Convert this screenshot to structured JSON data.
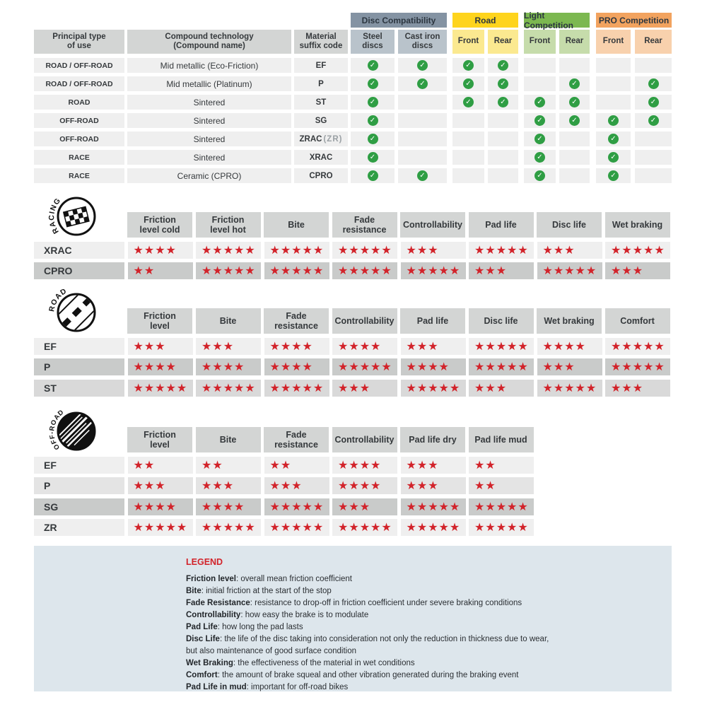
{
  "colors": {
    "star_red": "#d2232a",
    "check_green": "#2f9e44",
    "header_gray": "#d3d5d4",
    "row_light": "#efefef",
    "row_shades": {
      "light": "#efefef",
      "mediumlight": "#e4e4e4",
      "medium": "#d9d9d9",
      "dark": "#c9cbca"
    },
    "legend_bg": "#dde6ec",
    "accent_red": "#d2232a",
    "text_dark": "#35393c"
  },
  "chart_data": [
    {
      "id": "compatibility",
      "type": "table",
      "headers": {
        "principal": "Principal type\nof use",
        "compound": "Compound technology\n(Compound name)",
        "material": "Material\nsuffix code"
      },
      "column_groups": [
        {
          "label": "Disc Compatibility",
          "color": "#8493a3",
          "sub_color": "#b9c3cb",
          "sub_columns": [
            "Steel\ndiscs",
            "Cast iron\ndiscs"
          ]
        },
        {
          "label": "Road",
          "color": "#fed41d",
          "sub_color": "#fbe990",
          "sub_columns": [
            "Front",
            "Rear"
          ]
        },
        {
          "label": "Light Competition",
          "color": "#7cb850",
          "sub_color": "#c6dcab",
          "sub_columns": [
            "Front",
            "Rear"
          ]
        },
        {
          "label": "PRO Competition",
          "color": "#f2a35f",
          "sub_color": "#f8d1ad",
          "sub_columns": [
            "Front",
            "Rear"
          ]
        }
      ],
      "rows": [
        {
          "use": "ROAD / OFF-ROAD",
          "compound": "Mid metallic (Eco-Friction)",
          "code": "EF",
          "code_note": "",
          "checks": [
            1,
            1,
            1,
            1,
            0,
            0,
            0,
            0
          ]
        },
        {
          "use": "ROAD / OFF-ROAD",
          "compound": "Mid metallic (Platinum)",
          "code": "P",
          "code_note": "",
          "checks": [
            1,
            1,
            1,
            1,
            0,
            1,
            0,
            1
          ]
        },
        {
          "use": "ROAD",
          "compound": "Sintered",
          "code": "ST",
          "code_note": "",
          "checks": [
            1,
            0,
            1,
            1,
            1,
            1,
            0,
            1
          ]
        },
        {
          "use": "OFF-ROAD",
          "compound": "Sintered",
          "code": "SG",
          "code_note": "",
          "checks": [
            1,
            0,
            0,
            0,
            1,
            1,
            1,
            1
          ]
        },
        {
          "use": "OFF-ROAD",
          "compound": "Sintered",
          "code": "ZRAC",
          "code_note": "(ZR)",
          "checks": [
            1,
            0,
            0,
            0,
            1,
            0,
            1,
            0
          ]
        },
        {
          "use": "RACE",
          "compound": "Sintered",
          "code": "XRAC",
          "code_note": "",
          "checks": [
            1,
            0,
            0,
            0,
            1,
            0,
            1,
            0
          ]
        },
        {
          "use": "RACE",
          "compound": "Ceramic (CPRO)",
          "code": "CPRO",
          "code_note": "",
          "checks": [
            1,
            1,
            0,
            0,
            1,
            0,
            1,
            0
          ]
        }
      ]
    },
    {
      "id": "racing",
      "type": "table",
      "section_label": "RACING",
      "icon": "racing-flag-icon",
      "rating_max": 5,
      "columns": [
        "Friction\nlevel cold",
        "Friction\nlevel hot",
        "Bite",
        "Fade\nresistance",
        "Controllability",
        "Pad life",
        "Disc life",
        "Wet braking"
      ],
      "rows": [
        {
          "code": "XRAC",
          "shade": "light",
          "stars": [
            4,
            5,
            5,
            5,
            3,
            5,
            3,
            5
          ]
        },
        {
          "code": "CPRO",
          "shade": "dark",
          "stars": [
            2,
            5,
            5,
            5,
            5,
            3,
            5,
            3
          ]
        }
      ]
    },
    {
      "id": "road",
      "type": "table",
      "section_label": "ROAD",
      "icon": "road-icon",
      "rating_max": 5,
      "columns": [
        "Friction\nlevel",
        "Bite",
        "Fade\nresistance",
        "Controllability",
        "Pad life",
        "Disc life",
        "Wet braking",
        "Comfort"
      ],
      "rows": [
        {
          "code": "EF",
          "shade": "light",
          "stars": [
            3,
            3,
            4,
            4,
            3,
            5,
            4,
            5
          ]
        },
        {
          "code": "P",
          "shade": "dark",
          "stars": [
            4,
            4,
            4,
            5,
            4,
            5,
            3,
            5
          ]
        },
        {
          "code": "ST",
          "shade": "medium",
          "stars": [
            5,
            5,
            5,
            3,
            5,
            3,
            5,
            3
          ]
        }
      ]
    },
    {
      "id": "offroad",
      "type": "table",
      "section_label": "OFF-ROAD",
      "icon": "offroad-tire-icon",
      "rating_max": 5,
      "columns": [
        "Friction\nlevel",
        "Bite",
        "Fade\nresistance",
        "Controllability",
        "Pad life dry",
        "Pad life mud"
      ],
      "rows": [
        {
          "code": "EF",
          "shade": "light",
          "stars": [
            2,
            2,
            2,
            4,
            3,
            2
          ]
        },
        {
          "code": "P",
          "shade": "mediumlight",
          "stars": [
            3,
            3,
            3,
            4,
            3,
            2
          ]
        },
        {
          "code": "SG",
          "shade": "dark",
          "stars": [
            4,
            4,
            5,
            3,
            5,
            5
          ]
        },
        {
          "code": "ZR",
          "shade": "light",
          "stars": [
            5,
            5,
            5,
            5,
            5,
            5
          ]
        }
      ]
    }
  ],
  "legend": {
    "title": "LEGEND",
    "items": [
      {
        "term": "Friction level",
        "desc": "overall mean friction coefficient"
      },
      {
        "term": "Bite",
        "desc": "initial friction at the start of the stop"
      },
      {
        "term": "Fade Resistance",
        "desc": "resistance to drop-off in friction coefficient under severe braking conditions"
      },
      {
        "term": "Controllability",
        "desc": "how easy the brake is to modulate"
      },
      {
        "term": "Pad Life",
        "desc": "how long the pad lasts"
      },
      {
        "term": "Disc Life",
        "desc": "the life of the disc taking into consideration not only the reduction in thickness due to wear,"
      },
      {
        "term": "",
        "desc": "but also maintenance of good surface condition"
      },
      {
        "term": "Wet Braking",
        "desc": "the effectiveness of the material in wet conditions"
      },
      {
        "term": "Comfort",
        "desc": "the amount of brake squeal and other vibration generated during the braking event"
      },
      {
        "term": "Pad Life in mud",
        "desc": "important for off-road bikes"
      }
    ]
  }
}
